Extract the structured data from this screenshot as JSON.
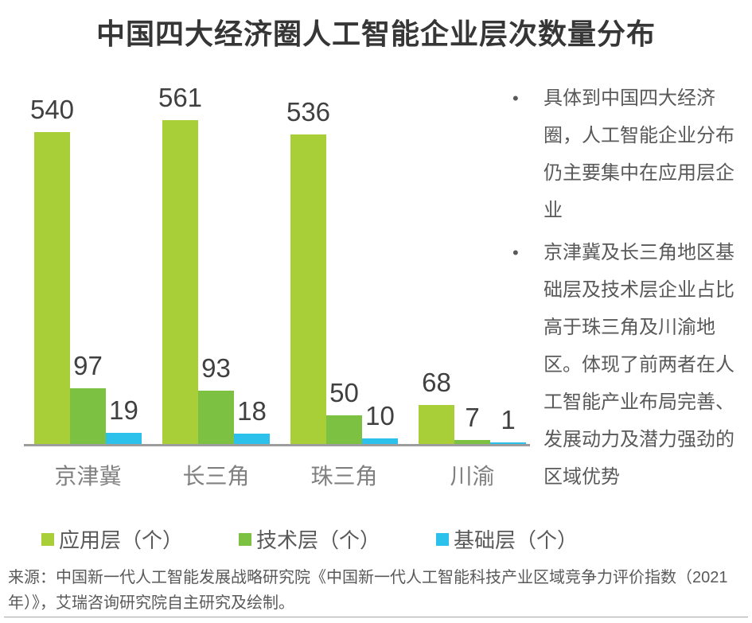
{
  "title": "中国四大经济圈人工智能企业层次数量分布",
  "chart_data": {
    "type": "bar",
    "title": "中国四大经济圈人工智能企业层次数量分布",
    "categories": [
      "京津冀",
      "长三角",
      "珠三角",
      "川渝"
    ],
    "series": [
      {
        "name": "应用层（个）",
        "color": "#a9cf38",
        "values": [
          540,
          561,
          536,
          68
        ]
      },
      {
        "name": "技术层（个）",
        "color": "#7cc142",
        "values": [
          97,
          93,
          50,
          7
        ]
      },
      {
        "name": "基础层（个）",
        "color": "#2bc1ea",
        "values": [
          19,
          18,
          10,
          1
        ]
      }
    ],
    "xlabel": "",
    "ylabel": "",
    "ylim": [
      0,
      600
    ],
    "grid": false,
    "data_labels": true,
    "legend_position": "bottom",
    "axis_color": "#9d9d9d"
  },
  "insights": {
    "bullets": [
      "具体到中国四大经济圈，人工智能企业分布仍主要集中在应用层企业",
      "京津冀及长三角地区基础层及技术层企业占比高于珠三角及川渝地区。体现了前两者在人工智能产业布局完善、发展动力及潜力强劲的区域优势"
    ]
  },
  "source": "来源：中国新一代人工智能发展战略研究院《中国新一代人工智能科技产业区域竞争力评价指数（2021年）》，艾瑞咨询研究院自主研究及绘制。"
}
